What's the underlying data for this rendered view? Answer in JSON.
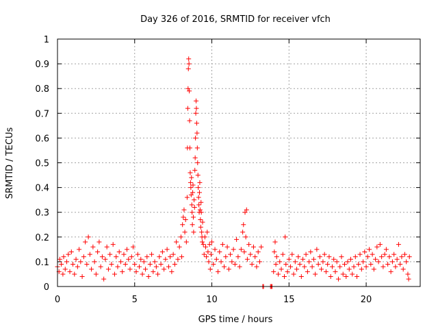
{
  "chart_data": {
    "type": "scatter",
    "title": "Day 326 of 2016, SRMTID for receiver vfch",
    "xlabel": "GPS time / hours",
    "ylabel": "SRMTID / TECUs",
    "xlim": [
      0,
      23.5
    ],
    "ylim": [
      0,
      1
    ],
    "xticks": [
      0,
      5,
      10,
      15,
      20
    ],
    "yticks": [
      0,
      0.1,
      0.2,
      0.3,
      0.4,
      0.5,
      0.6,
      0.7,
      0.8,
      0.9,
      1
    ],
    "xtick_labels": [
      "0",
      "5",
      "10",
      "15",
      "20"
    ],
    "ytick_labels": [
      "0",
      "0.1",
      "0.2",
      "0.3",
      "0.4",
      "0.5",
      "0.6",
      "0.7",
      "0.8",
      "0.9",
      "1"
    ],
    "grid": true,
    "marker_color": "#ff0000",
    "series": [
      {
        "name": "SRMTID",
        "marker": "plus",
        "points": [
          [
            0.0,
            0.08
          ],
          [
            0.1,
            0.06
          ],
          [
            0.15,
            0.11
          ],
          [
            0.25,
            0.09
          ],
          [
            0.35,
            0.05
          ],
          [
            0.4,
            0.12
          ],
          [
            0.5,
            0.07
          ],
          [
            0.6,
            0.1
          ],
          [
            0.7,
            0.13
          ],
          [
            0.8,
            0.06
          ],
          [
            0.9,
            0.14
          ],
          [
            1.0,
            0.09
          ],
          [
            1.1,
            0.05
          ],
          [
            1.2,
            0.11
          ],
          [
            1.3,
            0.08
          ],
          [
            1.4,
            0.15
          ],
          [
            1.5,
            0.1
          ],
          [
            1.6,
            0.04
          ],
          [
            1.7,
            0.12
          ],
          [
            1.8,
            0.18
          ],
          [
            1.9,
            0.09
          ],
          [
            2.0,
            0.2
          ],
          [
            2.1,
            0.13
          ],
          [
            2.2,
            0.07
          ],
          [
            2.3,
            0.16
          ],
          [
            2.4,
            0.1
          ],
          [
            2.5,
            0.05
          ],
          [
            2.6,
            0.14
          ],
          [
            2.7,
            0.18
          ],
          [
            2.8,
            0.08
          ],
          [
            2.9,
            0.12
          ],
          [
            3.0,
            0.03
          ],
          [
            3.1,
            0.11
          ],
          [
            3.2,
            0.16
          ],
          [
            3.3,
            0.07
          ],
          [
            3.4,
            0.13
          ],
          [
            3.5,
            0.09
          ],
          [
            3.6,
            0.17
          ],
          [
            3.7,
            0.05
          ],
          [
            3.8,
            0.12
          ],
          [
            3.9,
            0.08
          ],
          [
            4.0,
            0.14
          ],
          [
            4.1,
            0.1
          ],
          [
            4.2,
            0.06
          ],
          [
            4.3,
            0.13
          ],
          [
            4.4,
            0.09
          ],
          [
            4.5,
            0.15
          ],
          [
            4.6,
            0.11
          ],
          [
            4.7,
            0.07
          ],
          [
            4.8,
            0.12
          ],
          [
            4.9,
            0.16
          ],
          [
            5.0,
            0.09
          ],
          [
            5.1,
            0.06
          ],
          [
            5.2,
            0.13
          ],
          [
            5.3,
            0.08
          ],
          [
            5.4,
            0.11
          ],
          [
            5.5,
            0.05
          ],
          [
            5.6,
            0.1
          ],
          [
            5.7,
            0.07
          ],
          [
            5.8,
            0.12
          ],
          [
            5.9,
            0.04
          ],
          [
            6.0,
            0.09
          ],
          [
            6.1,
            0.13
          ],
          [
            6.2,
            0.06
          ],
          [
            6.3,
            0.1
          ],
          [
            6.4,
            0.08
          ],
          [
            6.5,
            0.05
          ],
          [
            6.6,
            0.12
          ],
          [
            6.7,
            0.09
          ],
          [
            6.8,
            0.14
          ],
          [
            6.9,
            0.07
          ],
          [
            7.0,
            0.11
          ],
          [
            7.1,
            0.15
          ],
          [
            7.2,
            0.08
          ],
          [
            7.3,
            0.12
          ],
          [
            7.4,
            0.06
          ],
          [
            7.5,
            0.13
          ],
          [
            7.6,
            0.09
          ],
          [
            7.7,
            0.18
          ],
          [
            7.8,
            0.11
          ],
          [
            7.9,
            0.16
          ],
          [
            8.0,
            0.2
          ],
          [
            8.05,
            0.12
          ],
          [
            8.1,
            0.25
          ],
          [
            8.15,
            0.28
          ],
          [
            8.2,
            0.31
          ],
          [
            8.25,
            0.22
          ],
          [
            8.3,
            0.27
          ],
          [
            8.35,
            0.18
          ],
          [
            8.4,
            0.36
          ],
          [
            8.42,
            0.56
          ],
          [
            8.44,
            0.72
          ],
          [
            8.46,
            0.8
          ],
          [
            8.48,
            0.88
          ],
          [
            8.5,
            0.92
          ],
          [
            8.52,
            0.9
          ],
          [
            8.54,
            0.79
          ],
          [
            8.56,
            0.67
          ],
          [
            8.58,
            0.56
          ],
          [
            8.6,
            0.46
          ],
          [
            8.62,
            0.42
          ],
          [
            8.64,
            0.4
          ],
          [
            8.66,
            0.37
          ],
          [
            8.68,
            0.44
          ],
          [
            8.7,
            0.33
          ],
          [
            8.72,
            0.3
          ],
          [
            8.74,
            0.25
          ],
          [
            8.76,
            0.38
          ],
          [
            8.78,
            0.41
          ],
          [
            8.8,
            0.28
          ],
          [
            8.82,
            0.22
          ],
          [
            8.85,
            0.35
          ],
          [
            8.88,
            0.32
          ],
          [
            8.9,
            0.47
          ],
          [
            8.92,
            0.52
          ],
          [
            8.94,
            0.6
          ],
          [
            8.96,
            0.7
          ],
          [
            8.98,
            0.75
          ],
          [
            9.0,
            0.72
          ],
          [
            9.02,
            0.66
          ],
          [
            9.04,
            0.62
          ],
          [
            9.06,
            0.56
          ],
          [
            9.08,
            0.5
          ],
          [
            9.1,
            0.45
          ],
          [
            9.12,
            0.4
          ],
          [
            9.14,
            0.36
          ],
          [
            9.16,
            0.33
          ],
          [
            9.18,
            0.3
          ],
          [
            9.2,
            0.38
          ],
          [
            9.22,
            0.42
          ],
          [
            9.24,
            0.31
          ],
          [
            9.26,
            0.27
          ],
          [
            9.28,
            0.24
          ],
          [
            9.3,
            0.34
          ],
          [
            9.32,
            0.3
          ],
          [
            9.34,
            0.22
          ],
          [
            9.36,
            0.2
          ],
          [
            9.38,
            0.18
          ],
          [
            9.4,
            0.26
          ],
          [
            9.45,
            0.17
          ],
          [
            9.5,
            0.13
          ],
          [
            9.55,
            0.2
          ],
          [
            9.6,
            0.16
          ],
          [
            9.65,
            0.12
          ],
          [
            9.7,
            0.22
          ],
          [
            9.75,
            0.14
          ],
          [
            9.8,
            0.1
          ],
          [
            9.85,
            0.17
          ],
          [
            9.9,
            0.07
          ],
          [
            9.95,
            0.13
          ],
          [
            10.0,
            0.18
          ],
          [
            10.1,
            0.09
          ],
          [
            10.2,
            0.15
          ],
          [
            10.3,
            0.11
          ],
          [
            10.4,
            0.06
          ],
          [
            10.5,
            0.14
          ],
          [
            10.6,
            0.1
          ],
          [
            10.7,
            0.17
          ],
          [
            10.8,
            0.08
          ],
          [
            10.9,
            0.12
          ],
          [
            11.0,
            0.16
          ],
          [
            11.1,
            0.07
          ],
          [
            11.2,
            0.13
          ],
          [
            11.3,
            0.1
          ],
          [
            11.4,
            0.15
          ],
          [
            11.5,
            0.09
          ],
          [
            11.6,
            0.19
          ],
          [
            11.7,
            0.12
          ],
          [
            11.8,
            0.08
          ],
          [
            11.9,
            0.15
          ],
          [
            12.0,
            0.22
          ],
          [
            12.05,
            0.25
          ],
          [
            12.1,
            0.14
          ],
          [
            12.15,
            0.3
          ],
          [
            12.2,
            0.2
          ],
          [
            12.25,
            0.31
          ],
          [
            12.3,
            0.11
          ],
          [
            12.4,
            0.17
          ],
          [
            12.5,
            0.13
          ],
          [
            12.6,
            0.09
          ],
          [
            12.7,
            0.16
          ],
          [
            12.8,
            0.12
          ],
          [
            12.9,
            0.08
          ],
          [
            13.0,
            0.14
          ],
          [
            13.1,
            0.1
          ],
          [
            13.2,
            0.16
          ],
          [
            13.3,
            0.0
          ],
          [
            13.35,
            0.0
          ],
          [
            13.8,
            0.0
          ],
          [
            13.85,
            0.0
          ],
          [
            13.9,
            0.0
          ],
          [
            14.0,
            0.06
          ],
          [
            14.05,
            0.14
          ],
          [
            14.1,
            0.18
          ],
          [
            14.15,
            0.09
          ],
          [
            14.2,
            0.12
          ],
          [
            14.3,
            0.05
          ],
          [
            14.4,
            0.1
          ],
          [
            14.5,
            0.07
          ],
          [
            14.6,
            0.13
          ],
          [
            14.7,
            0.04
          ],
          [
            14.75,
            0.2
          ],
          [
            14.8,
            0.09
          ],
          [
            14.9,
            0.06
          ],
          [
            15.0,
            0.11
          ],
          [
            15.1,
            0.08
          ],
          [
            15.2,
            0.13
          ],
          [
            15.3,
            0.05
          ],
          [
            15.4,
            0.1
          ],
          [
            15.5,
            0.07
          ],
          [
            15.6,
            0.12
          ],
          [
            15.7,
            0.09
          ],
          [
            15.8,
            0.04
          ],
          [
            15.9,
            0.11
          ],
          [
            16.0,
            0.08
          ],
          [
            16.1,
            0.13
          ],
          [
            16.2,
            0.06
          ],
          [
            16.3,
            0.1
          ],
          [
            16.4,
            0.14
          ],
          [
            16.5,
            0.08
          ],
          [
            16.6,
            0.11
          ],
          [
            16.7,
            0.05
          ],
          [
            16.8,
            0.15
          ],
          [
            16.9,
            0.09
          ],
          [
            17.0,
            0.12
          ],
          [
            17.1,
            0.07
          ],
          [
            17.2,
            0.1
          ],
          [
            17.3,
            0.13
          ],
          [
            17.4,
            0.06
          ],
          [
            17.5,
            0.09
          ],
          [
            17.6,
            0.12
          ],
          [
            17.7,
            0.04
          ],
          [
            17.8,
            0.08
          ],
          [
            17.9,
            0.11
          ],
          [
            18.0,
            0.06
          ],
          [
            18.1,
            0.1
          ],
          [
            18.2,
            0.03
          ],
          [
            18.3,
            0.08
          ],
          [
            18.4,
            0.12
          ],
          [
            18.5,
            0.05
          ],
          [
            18.6,
            0.09
          ],
          [
            18.7,
            0.04
          ],
          [
            18.8,
            0.1
          ],
          [
            18.9,
            0.07
          ],
          [
            19.0,
            0.11
          ],
          [
            19.1,
            0.05
          ],
          [
            19.2,
            0.08
          ],
          [
            19.3,
            0.12
          ],
          [
            19.4,
            0.04
          ],
          [
            19.5,
            0.09
          ],
          [
            19.6,
            0.13
          ],
          [
            19.7,
            0.07
          ],
          [
            19.8,
            0.1
          ],
          [
            19.9,
            0.14
          ],
          [
            20.0,
            0.08
          ],
          [
            20.1,
            0.12
          ],
          [
            20.2,
            0.15
          ],
          [
            20.3,
            0.09
          ],
          [
            20.4,
            0.13
          ],
          [
            20.5,
            0.07
          ],
          [
            20.6,
            0.11
          ],
          [
            20.7,
            0.16
          ],
          [
            20.8,
            0.1
          ],
          [
            20.9,
            0.17
          ],
          [
            21.0,
            0.12
          ],
          [
            21.1,
            0.08
          ],
          [
            21.2,
            0.13
          ],
          [
            21.3,
            0.15
          ],
          [
            21.4,
            0.09
          ],
          [
            21.5,
            0.12
          ],
          [
            21.6,
            0.06
          ],
          [
            21.7,
            0.1
          ],
          [
            21.8,
            0.13
          ],
          [
            21.9,
            0.08
          ],
          [
            22.0,
            0.11
          ],
          [
            22.1,
            0.17
          ],
          [
            22.2,
            0.09
          ],
          [
            22.3,
            0.12
          ],
          [
            22.4,
            0.07
          ],
          [
            22.5,
            0.13
          ],
          [
            22.6,
            0.1
          ],
          [
            22.7,
            0.05
          ],
          [
            22.75,
            0.03
          ],
          [
            22.8,
            0.12
          ]
        ]
      }
    ]
  }
}
